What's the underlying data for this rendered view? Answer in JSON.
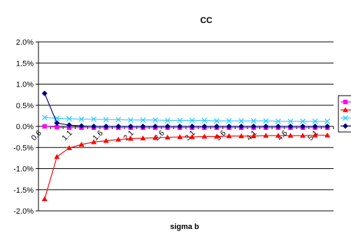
{
  "chart_data": {
    "type": "line",
    "title": "CC",
    "xlabel": "sigma b",
    "ylabel": "",
    "ylim": [
      -0.02,
      0.02
    ],
    "y_ticks": [
      0.02,
      0.015,
      0.01,
      0.005,
      0,
      -0.005,
      -0.01,
      -0.015,
      -0.02
    ],
    "y_tick_labels": [
      "2.0%",
      "1.5%",
      "1.0%",
      "0.5%",
      "0.0%",
      "-0.5%",
      "-1.0%",
      "-1.5%",
      "-2.0%"
    ],
    "x": [
      0.6,
      0.8,
      1.0,
      1.2,
      1.4,
      1.6,
      1.8,
      2.0,
      2.2,
      2.4,
      2.6,
      2.8,
      3.0,
      3.2,
      3.4,
      3.6,
      3.8,
      4.0,
      4.2,
      4.4,
      4.6,
      4.8,
      5.0,
      5.2
    ],
    "x_tick_labels": [
      "0.6",
      "1.1",
      "1.6",
      "2.1",
      "2.6",
      "3.1",
      "3.6",
      "4.1",
      "4.6",
      "5.1"
    ],
    "grid": "horizontal",
    "legend": "right",
    "series": [
      {
        "color": "#ff00ff",
        "marker": "square",
        "values": [
          0.0,
          -0.0002,
          -0.0003,
          -0.0003,
          -0.0003,
          -0.0003,
          -0.0003,
          -0.0003,
          -0.0003,
          -0.0003,
          -0.0003,
          -0.0003,
          -0.0003,
          -0.0003,
          -0.0003,
          -0.0003,
          -0.0003,
          -0.0003,
          -0.0003,
          -0.0003,
          -0.0003,
          -0.0003,
          -0.0003,
          -0.0003
        ]
      },
      {
        "color": "#ff0000",
        "marker": "triangle",
        "values": [
          -0.0172,
          -0.0072,
          -0.0051,
          -0.0043,
          -0.0037,
          -0.0034,
          -0.0031,
          -0.0029,
          -0.0028,
          -0.0027,
          -0.0026,
          -0.0025,
          -0.0025,
          -0.0024,
          -0.0024,
          -0.0023,
          -0.0023,
          -0.0023,
          -0.0022,
          -0.0022,
          -0.0022,
          -0.0022,
          -0.0021,
          -0.0021
        ]
      },
      {
        "color": "#33ccff",
        "marker": "x",
        "values": [
          0.0021,
          0.0019,
          0.0018,
          0.0017,
          0.0017,
          0.0016,
          0.0016,
          0.0015,
          0.0015,
          0.0015,
          0.0014,
          0.0014,
          0.0014,
          0.0014,
          0.0013,
          0.0013,
          0.0013,
          0.0013,
          0.0013,
          0.0012,
          0.0012,
          0.0012,
          0.0012,
          0.0012
        ]
      },
      {
        "color": "#000080",
        "marker": "diamond",
        "values": [
          0.0078,
          0.0008,
          0.0003,
          0.0001,
          0.0,
          0.0,
          0.0,
          0.0,
          0.0,
          0.0,
          0.0,
          0.0,
          0.0,
          0.0,
          0.0,
          0.0,
          0.0,
          0.0,
          0.0,
          0.0,
          0.0,
          0.0,
          0.0,
          0.0
        ]
      }
    ]
  }
}
